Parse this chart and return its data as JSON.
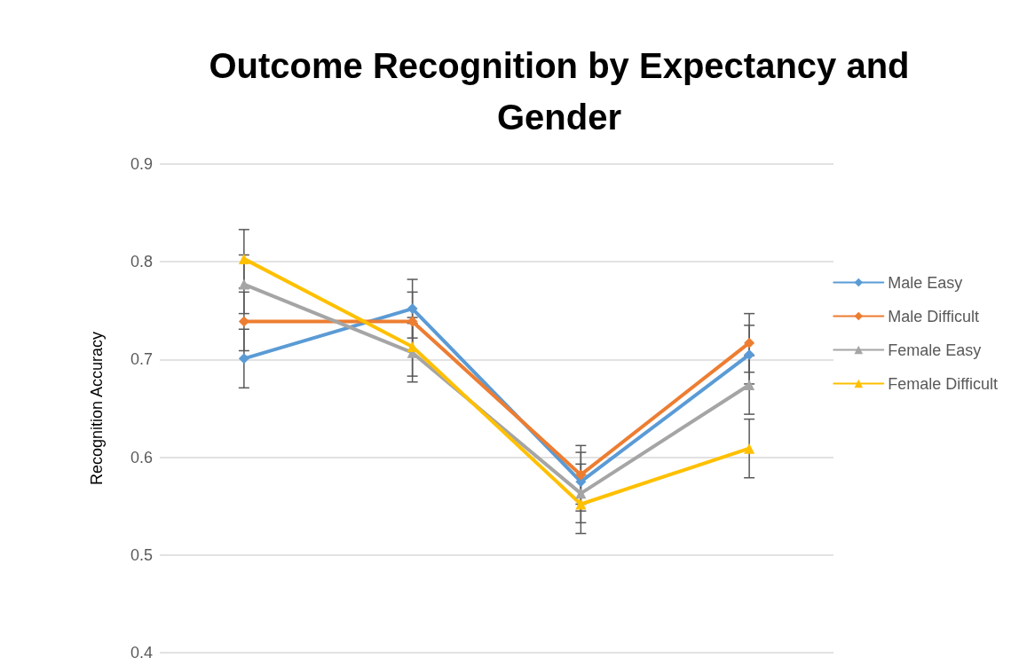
{
  "chart_data": {
    "type": "line",
    "title": "Outcome Recognition by Expectancy and\nGender",
    "ylabel": "Recognition Accuracy",
    "categories": [
      null,
      null,
      null,
      null
    ],
    "series": [
      {
        "name": "Male Easy",
        "color": "#5b9bd5",
        "marker": "diamond",
        "values": [
          0.701,
          0.752,
          0.575,
          0.705
        ],
        "errors": [
          0.03,
          0.03,
          0.03,
          0.03
        ]
      },
      {
        "name": "Male Difficult",
        "color": "#ed7d31",
        "marker": "diamond",
        "values": [
          0.739,
          0.739,
          0.582,
          0.717
        ],
        "errors": [
          0.03,
          0.03,
          0.03,
          0.03
        ]
      },
      {
        "name": "Female Easy",
        "color": "#a5a5a5",
        "marker": "triangle",
        "values": [
          0.777,
          0.707,
          0.563,
          0.674
        ],
        "errors": [
          0.03,
          0.03,
          0.03,
          0.03
        ]
      },
      {
        "name": "Female Difficult",
        "color": "#ffc000",
        "marker": "triangle",
        "values": [
          0.803,
          0.713,
          0.552,
          0.609
        ],
        "errors": [
          0.03,
          0.03,
          0.03,
          0.03
        ]
      }
    ],
    "ylim": [
      0.4,
      0.9
    ],
    "yticks": [
      0.4,
      0.5,
      0.6,
      0.7,
      0.8,
      0.9
    ],
    "grid": "y",
    "legend": "right",
    "tick_labels": "y",
    "line_style": "solid"
  }
}
